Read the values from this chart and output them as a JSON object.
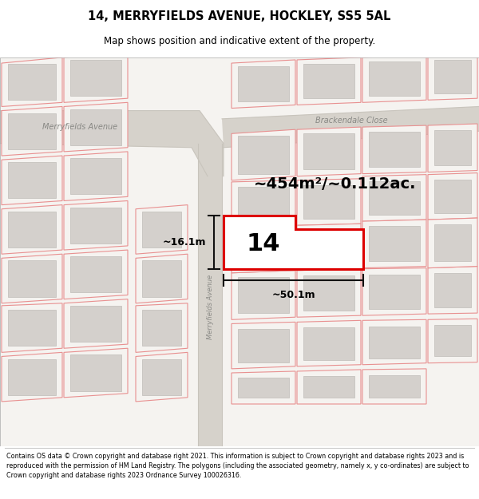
{
  "title_line1": "14, MERRYFIELDS AVENUE, HOCKLEY, SS5 5AL",
  "title_line2": "Map shows position and indicative extent of the property.",
  "footer_text": "Contains OS data © Crown copyright and database right 2021. This information is subject to Crown copyright and database rights 2023 and is reproduced with the permission of HM Land Registry. The polygons (including the associated geometry, namely x, y co-ordinates) are subject to Crown copyright and database rights 2023 Ordnance Survey 100026316.",
  "area_text": "~454m²/~0.112ac.",
  "label_width": "~50.1m",
  "label_height": "~16.1m",
  "plot_number": "14",
  "map_bg": "#f2f0ed",
  "road_fill": "#d6d2cb",
  "road_edge": "#c8c4bc",
  "plot_line_color": "#dd0000",
  "building_fill": "#d4d0cc",
  "building_edge": "#c0bcb8",
  "boundary_color": "#e89090",
  "street_color": "#888884",
  "meas_color": "#111111",
  "street_label_merryfields": "Merryfields Avenue",
  "street_label_brackendale": "Brackendale Close"
}
